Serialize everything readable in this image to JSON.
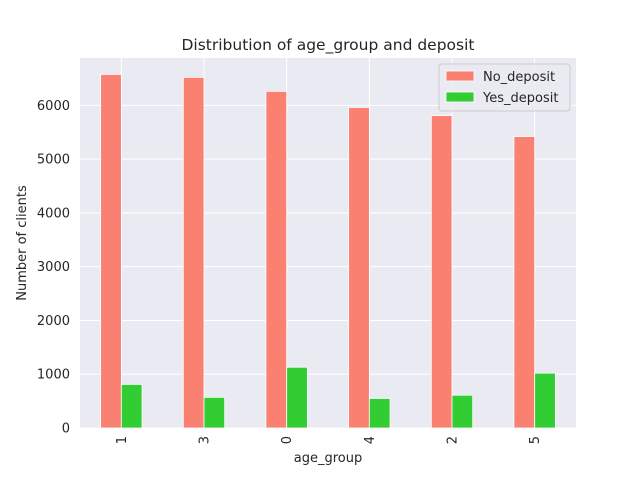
{
  "chart_data": {
    "type": "bar",
    "title": "Distribution of age_group and deposit",
    "xlabel": "age_group",
    "ylabel": "Number of clients",
    "categories": [
      "1",
      "3",
      "0",
      "4",
      "2",
      "5"
    ],
    "series": [
      {
        "name": "No_deposit",
        "color": "#fa8072",
        "values": [
          6575,
          6520,
          6260,
          5960,
          5810,
          5420
        ]
      },
      {
        "name": "Yes_deposit",
        "color": "#32cd32",
        "values": [
          810,
          570,
          1130,
          550,
          610,
          1020
        ]
      }
    ],
    "ylim": [
      0,
      6880
    ],
    "yticks": [
      0,
      1000,
      2000,
      3000,
      4000,
      5000,
      6000
    ],
    "grid": true,
    "legend_position": "top-right",
    "background": "#eaeaf2"
  }
}
